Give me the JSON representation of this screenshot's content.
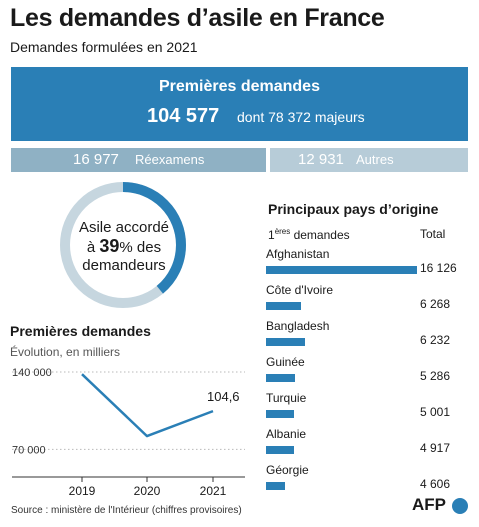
{
  "header": {
    "title": "Les demandes d’asile en France",
    "subtitle": "Demandes formulées en 2021"
  },
  "first_requests": {
    "label": "Premières demandes",
    "total": "104 577",
    "detail": "dont 78 372 majeurs"
  },
  "reexamens": {
    "value": "16 977",
    "label": "Réexamens"
  },
  "autres": {
    "value": "12 931",
    "label": "Autres"
  },
  "asylum": {
    "line1": "Asile accordé",
    "line2_prefix": "à ",
    "line2_value": "39",
    "line2_suffix": "% des",
    "line3": "demandeurs",
    "granted_percent": 39,
    "colors": {
      "granted": "#2a7fb6",
      "rest": "#c6d6df"
    }
  },
  "countries": {
    "title": "Principaux pays d’origine",
    "col_label_prefix": "1",
    "col_label_sup": "ères",
    "col_label_suffix": " demandes",
    "col_total": "Total",
    "items": [
      {
        "name": "Afghanistan",
        "first": 16126,
        "total": "16 126"
      },
      {
        "name": "Côte d'Ivoire",
        "first": 3750,
        "total": "6 268"
      },
      {
        "name": "Bangladesh",
        "first": 4200,
        "total": "6 232"
      },
      {
        "name": "Guinée",
        "first": 3150,
        "total": "5 286"
      },
      {
        "name": "Turquie",
        "first": 2950,
        "total": "5 001"
      },
      {
        "name": "Albanie",
        "first": 2950,
        "total": "4 917"
      },
      {
        "name": "Géorgie",
        "first": 2000,
        "total": "4 606"
      }
    ]
  },
  "evolution": {
    "title": "Premières demandes",
    "subtitle": "Évolution, en milliers"
  },
  "chart_data": {
    "type": "line",
    "title": "Premières demandes",
    "subtitle": "Évolution, en milliers",
    "x": [
      "2019",
      "2020",
      "2021"
    ],
    "series": [
      {
        "values": [
          138,
          82,
          104.6
        ]
      }
    ],
    "yticks": [
      140000,
      70000
    ],
    "ytick_labels": [
      "140 000",
      "70 000"
    ],
    "ylim": [
      45,
      140
    ],
    "annotations": [
      {
        "x": "2021",
        "label": "104,6"
      }
    ],
    "grid": true,
    "color": "#2a7fb6"
  },
  "footer": {
    "source": "Source : ministère de l'Intérieur (chiffres provisoires)",
    "logo": "AFP"
  }
}
